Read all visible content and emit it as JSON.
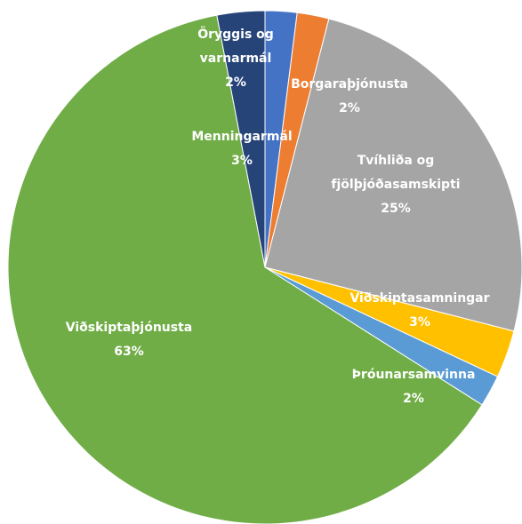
{
  "chart_data": {
    "type": "pie",
    "categories": [
      "Öryggis og varnarmál",
      "Borgaraþjónusta",
      "Tvíhliða og fjölþjóðasamskipti",
      "Viðskiptasamningar",
      "Þróunarsamvinna",
      "Viðskiptaþjónusta",
      "Menningarmál"
    ],
    "values": [
      2,
      2,
      25,
      3,
      2,
      63,
      3
    ],
    "value_labels": [
      "2%",
      "2%",
      "25%",
      "3%",
      "2%",
      "63%",
      "3%"
    ],
    "colors": [
      "#4472c4",
      "#ed7d31",
      "#a5a5a5",
      "#ffc000",
      "#5b9bd5",
      "#70ad47",
      "#264478"
    ]
  }
}
